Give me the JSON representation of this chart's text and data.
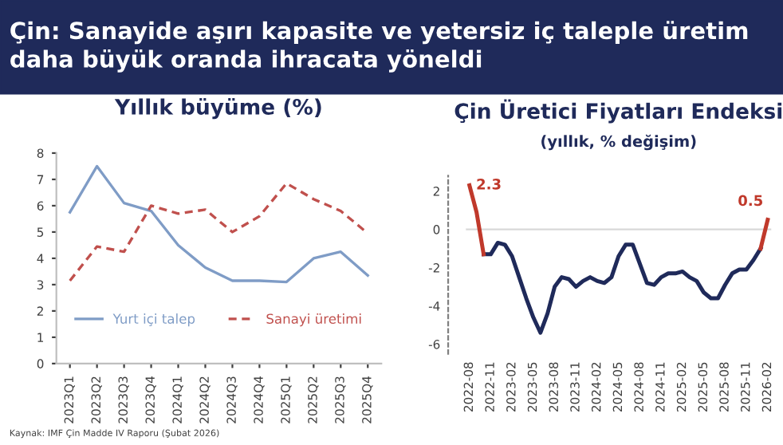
{
  "chart_data": [
    {
      "type": "other",
      "title": "Çin: Sanayide aşırı kapasite ve yetersiz iç taleple üretim daha büyük oranda ihracata yöneldi"
    },
    {
      "type": "line",
      "title": "Yıllık büyüme (%)",
      "categories": [
        "2023Q1",
        "2023Q2",
        "2023Q3",
        "2023Q4",
        "2024Q1",
        "2024Q2",
        "2024Q3",
        "2024Q4",
        "2025Q1",
        "2025Q2",
        "2025Q3",
        "2025Q4"
      ],
      "series": [
        {
          "name": "Yurt içi talep",
          "color": "#7f9cc6",
          "line_style": "solid",
          "values": [
            5.75,
            7.5,
            6.1,
            5.8,
            4.5,
            3.65,
            3.15,
            3.15,
            3.1,
            4.0,
            4.25,
            3.35
          ]
        },
        {
          "name": "Sanayi üretimi",
          "color": "#c0504d",
          "line_style": "dashed",
          "values": [
            3.15,
            4.45,
            4.25,
            6.0,
            5.7,
            5.85,
            5.0,
            5.6,
            6.85,
            6.25,
            5.8,
            4.95
          ]
        }
      ],
      "ylim": [
        0,
        8
      ],
      "yticks": [
        0,
        1,
        2,
        3,
        4,
        5,
        6,
        7,
        8
      ],
      "grid": false,
      "legend": "bottom",
      "annotations": [
        "Kaynak: IMF Çin Madde IV Raporu (Şubat 2026)"
      ]
    },
    {
      "type": "line",
      "title": "Çin Üretici Fiyatları Endeksi",
      "subtitle": "(yıllık, % değişim)",
      "categories": [
        "2022-08",
        null,
        null,
        "2022-11",
        null,
        null,
        "2023-02",
        null,
        null,
        "2023-05",
        null,
        null,
        "2023-08",
        null,
        null,
        "2023-11",
        null,
        null,
        "2024-02",
        null,
        null,
        "2024-05",
        null,
        null,
        "2024-08",
        null,
        null,
        "2024-11",
        null,
        null,
        "2025-02",
        null,
        null,
        "2025-05",
        null,
        null,
        "2025-08",
        null,
        null,
        "2025-11",
        null,
        null,
        "2026-02"
      ],
      "series": [
        {
          "color": "#1f2a5a",
          "values": [
            null,
            null,
            -1.3,
            -1.3,
            -0.7,
            -0.8,
            -1.4,
            -2.5,
            -3.6,
            -4.6,
            -5.4,
            -4.4,
            -3.0,
            -2.5,
            -2.6,
            -3.0,
            -2.7,
            -2.5,
            -2.7,
            -2.8,
            -2.5,
            -1.4,
            -0.8,
            -0.8,
            -1.8,
            -2.8,
            -2.9,
            -2.5,
            -2.3,
            -2.3,
            -2.2,
            -2.5,
            -2.7,
            -3.3,
            -3.6,
            -3.6,
            -2.9,
            -2.3,
            -2.1,
            -2.1,
            -1.6,
            -1.0,
            null
          ]
        },
        {
          "color": "#c0392b",
          "values": [
            2.3,
            0.9,
            -1.3,
            null,
            null,
            null,
            null,
            null,
            null,
            null,
            null,
            null,
            null,
            null,
            null,
            null,
            null,
            null,
            null,
            null,
            null,
            null,
            null,
            null,
            null,
            null,
            null,
            null,
            null,
            null,
            null,
            null,
            null,
            null,
            null,
            null,
            null,
            null,
            null,
            null,
            null,
            -1.0,
            0.5
          ],
          "value_labels": [
            "2.3",
            null,
            null,
            null,
            null,
            null,
            null,
            null,
            null,
            null,
            null,
            null,
            null,
            null,
            null,
            null,
            null,
            null,
            null,
            null,
            null,
            null,
            null,
            null,
            null,
            null,
            null,
            null,
            null,
            null,
            null,
            null,
            null,
            null,
            null,
            null,
            null,
            null,
            null,
            null,
            null,
            null,
            "0.5"
          ]
        }
      ],
      "ylim": [
        -6.5,
        2.8
      ],
      "yticks": [
        -6,
        -4,
        -2,
        0,
        2
      ],
      "grid": false,
      "ref_lines": [
        {
          "axis": "y",
          "value": 0,
          "color": "#d9d9d9"
        }
      ]
    }
  ]
}
